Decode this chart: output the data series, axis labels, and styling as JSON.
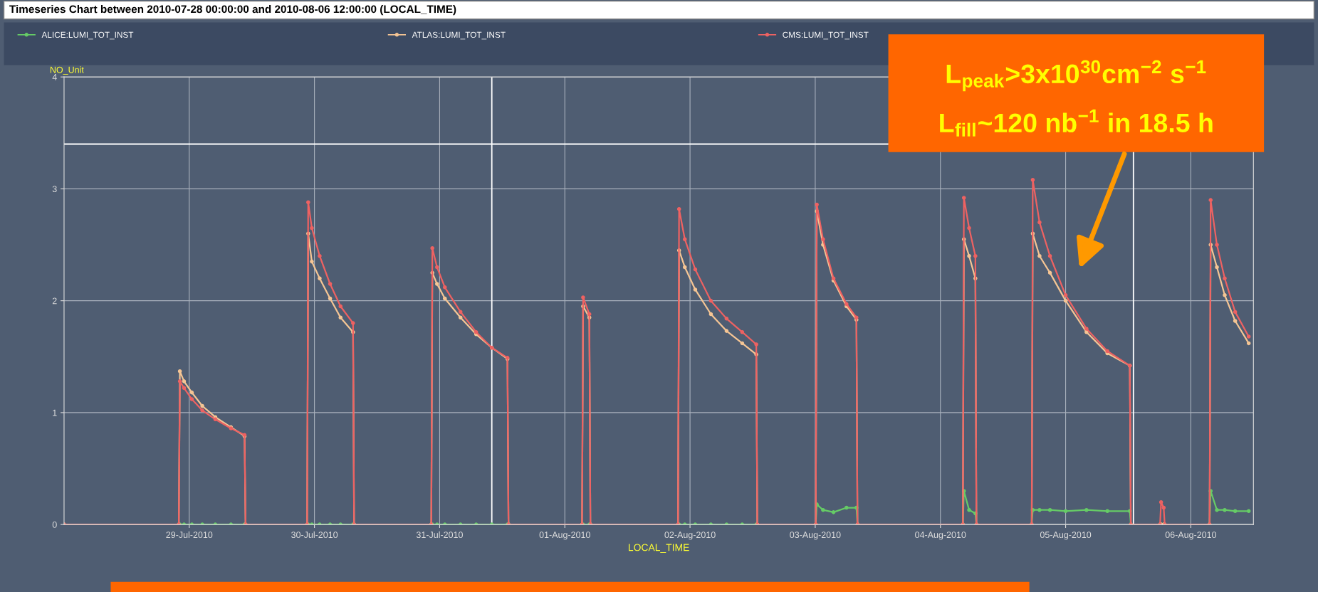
{
  "chart_data": {
    "type": "line",
    "title": "Timeseries Chart between 2010-07-28 00:00:00 and 2010-08-06 12:00:00 (LOCAL_TIME)",
    "xlabel": "LOCAL_TIME",
    "ylabel": "NO_Unit",
    "x": [
      "2010-07-28T00:00",
      "2010-07-28T22:00",
      "2010-07-28T22:12",
      "2010-07-28T23:00",
      "2010-07-29T00:30",
      "2010-07-29T02:30",
      "2010-07-29T05:00",
      "2010-07-29T08:00",
      "2010-07-29T10:36",
      "2010-07-29T10:48",
      "2010-07-29T22:36",
      "2010-07-29T22:48",
      "2010-07-29T23:30",
      "2010-07-30T01:00",
      "2010-07-30T03:00",
      "2010-07-30T05:00",
      "2010-07-30T07:24",
      "2010-07-30T07:36",
      "2010-07-30T22:24",
      "2010-07-30T22:36",
      "2010-07-30T23:30",
      "2010-07-31T01:00",
      "2010-07-31T04:00",
      "2010-07-31T07:00",
      "2010-07-31T10:00",
      "2010-07-31T13:00",
      "2010-07-31T13:12",
      "2010-08-01T03:18",
      "2010-08-01T03:30",
      "2010-08-01T04:42",
      "2010-08-01T04:54",
      "2010-08-01T21:42",
      "2010-08-01T21:54",
      "2010-08-01T23:00",
      "2010-08-02T01:00",
      "2010-08-02T04:00",
      "2010-08-02T07:00",
      "2010-08-02T10:00",
      "2010-08-02T12:42",
      "2010-08-02T12:54",
      "2010-08-03T00:06",
      "2010-08-03T00:18",
      "2010-08-03T01:30",
      "2010-08-03T03:30",
      "2010-08-03T06:00",
      "2010-08-03T07:54",
      "2010-08-03T08:06",
      "2010-08-04T04:18",
      "2010-08-04T04:30",
      "2010-08-04T05:30",
      "2010-08-04T06:42",
      "2010-08-04T06:54",
      "2010-08-04T17:30",
      "2010-08-04T17:42",
      "2010-08-04T19:00",
      "2010-08-04T21:00",
      "2010-08-05T00:00",
      "2010-08-05T04:00",
      "2010-08-05T08:00",
      "2010-08-05T12:18",
      "2010-08-05T12:30",
      "2010-08-05T18:06",
      "2010-08-05T18:18",
      "2010-08-05T18:48",
      "2010-08-05T19:00",
      "2010-08-06T03:36",
      "2010-08-06T03:48",
      "2010-08-06T05:00",
      "2010-08-06T06:30",
      "2010-08-06T08:30",
      "2010-08-06T11:06"
    ],
    "series": [
      {
        "name": "ALICE:LUMI_TOT_INST",
        "color": "#66cc66",
        "values": [
          0,
          0,
          0,
          0,
          0,
          0,
          0,
          0,
          0,
          0,
          0,
          0,
          0,
          0,
          0,
          0,
          0,
          0,
          0,
          0,
          0,
          0,
          0,
          0,
          0,
          0,
          0,
          0,
          0,
          0,
          0,
          0,
          0,
          0,
          0,
          0,
          0,
          0,
          0,
          0,
          0,
          0.18,
          0.13,
          0.11,
          0.15,
          0.15,
          0,
          0,
          0.3,
          0.13,
          0.1,
          0,
          0,
          0.13,
          0.13,
          0.13,
          0.12,
          0.13,
          0.12,
          0.12,
          0,
          0,
          0,
          0,
          0,
          0,
          0.3,
          0.13,
          0.13,
          0.12,
          0.12
        ]
      },
      {
        "name": "ATLAS:LUMI_TOT_INST",
        "color": "#f5c594",
        "values": [
          0,
          0,
          1.37,
          1.28,
          1.18,
          1.06,
          0.96,
          0.87,
          0.79,
          0,
          0,
          2.6,
          2.35,
          2.2,
          2.02,
          1.85,
          1.72,
          0,
          0,
          2.25,
          2.15,
          2.02,
          1.85,
          1.7,
          1.58,
          1.48,
          0,
          0,
          1.95,
          1.85,
          0,
          0,
          2.45,
          2.3,
          2.1,
          1.88,
          1.73,
          1.62,
          1.52,
          0,
          0,
          2.8,
          2.5,
          2.18,
          1.95,
          1.83,
          0,
          0,
          2.55,
          2.4,
          2.2,
          0,
          0,
          2.6,
          2.4,
          2.25,
          2.0,
          1.72,
          1.53,
          1.42,
          0,
          0,
          0,
          0,
          0,
          0,
          2.5,
          2.3,
          2.05,
          1.82,
          1.62
        ]
      },
      {
        "name": "CMS:LUMI_TOT_INST",
        "color": "#ee6262",
        "values": [
          0,
          0,
          1.28,
          1.22,
          1.12,
          1.02,
          0.94,
          0.86,
          0.8,
          0,
          0,
          2.88,
          2.65,
          2.4,
          2.15,
          1.95,
          1.8,
          0,
          0,
          2.47,
          2.3,
          2.12,
          1.9,
          1.72,
          1.58,
          1.49,
          0,
          0,
          2.03,
          1.88,
          0,
          0,
          2.82,
          2.55,
          2.28,
          2.0,
          1.84,
          1.72,
          1.61,
          0,
          0,
          2.86,
          2.55,
          2.2,
          1.97,
          1.85,
          0,
          0,
          2.92,
          2.65,
          2.4,
          0,
          0,
          3.08,
          2.7,
          2.4,
          2.05,
          1.75,
          1.55,
          1.42,
          0,
          0,
          0.2,
          0.15,
          0,
          0,
          2.9,
          2.5,
          2.2,
          1.9,
          1.68
        ]
      }
    ],
    "xlim": [
      "2010-07-28T00:00",
      "2010-08-06T12:00"
    ],
    "xticks": [
      {
        "value": "2010-07-29",
        "label": "29-Jul-2010"
      },
      {
        "value": "2010-07-30",
        "label": "30-Jul-2010"
      },
      {
        "value": "2010-07-31",
        "label": "31-Jul-2010"
      },
      {
        "value": "2010-08-01",
        "label": "01-Aug-2010"
      },
      {
        "value": "2010-08-02",
        "label": "02-Aug-2010"
      },
      {
        "value": "2010-08-03",
        "label": "03-Aug-2010"
      },
      {
        "value": "2010-08-04",
        "label": "04-Aug-2010"
      },
      {
        "value": "2010-08-05",
        "label": "05-Aug-2010"
      },
      {
        "value": "2010-08-06",
        "label": "06-Aug-2010"
      }
    ],
    "ylim": [
      0,
      4
    ],
    "yticks": [
      0,
      1,
      2,
      3,
      4
    ],
    "ref_lines": [
      {
        "axis": "y",
        "value": 3.4,
        "color": "#ffffff"
      },
      {
        "axis": "x",
        "value": "2010-07-31T10:00",
        "color": "#ffffff"
      },
      {
        "axis": "x",
        "value": "2010-08-05T13:00",
        "color": "#ffffff"
      }
    ],
    "annotations": [
      "L$_{peak}$>3x10$^{30}$cm$^{−2}$ s$^{−1}$",
      "L$_{fill}$~120 nb$^{−1}$ in 18.5 h"
    ],
    "grid": true,
    "legend": "top",
    "marker": "circle",
    "line_style": "solid"
  }
}
